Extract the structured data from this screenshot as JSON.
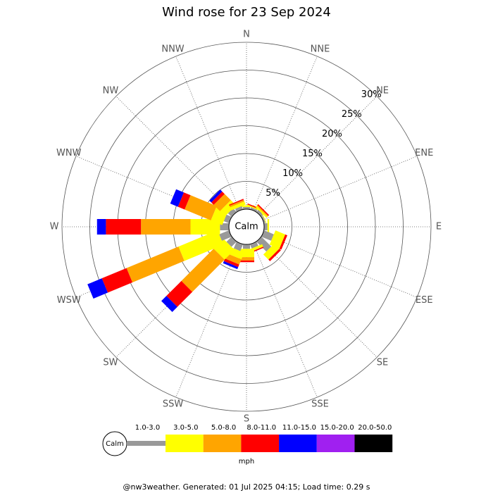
{
  "chart_data": {
    "type": "wind-rose",
    "title": "Wind rose for 23 Sep 2024",
    "categories": [
      "N",
      "NNE",
      "NE",
      "ENE",
      "E",
      "ESE",
      "SE",
      "SSE",
      "S",
      "SSW",
      "SW",
      "WSW",
      "W",
      "WNW",
      "NW",
      "NNW"
    ],
    "series": [
      {
        "name": "1.0-3.0",
        "color": "#999999",
        "values": [
          0.4,
          0.4,
          0.5,
          0.3,
          0.6,
          1.9,
          2.5,
          0.8,
          0.8,
          1.3,
          1.3,
          1.9,
          1.6,
          1.0,
          0.9,
          0.6
        ]
      },
      {
        "name": "3.0-5.0",
        "color": "#ffff00",
        "values": [
          0.3,
          0.2,
          0.3,
          0.1,
          0.3,
          1.9,
          1.3,
          0.5,
          1.5,
          1.3,
          2.5,
          7.6,
          5.3,
          2.2,
          1.3,
          0.6
        ]
      },
      {
        "name": "5.0-8.0",
        "color": "#ffa500",
        "values": [
          0,
          0,
          0.2,
          0,
          0,
          0,
          0,
          0,
          0.6,
          1.0,
          8.2,
          10.1,
          8.9,
          5.1,
          1.6,
          0.3
        ]
      },
      {
        "name": "8.0-11.0",
        "color": "#ff0000",
        "values": [
          0,
          0.2,
          0.2,
          0,
          0,
          0.4,
          0.4,
          0.2,
          0.3,
          0.5,
          3.8,
          4.8,
          6.3,
          1.3,
          0.6,
          0.2
        ]
      },
      {
        "name": "11.0-15.0",
        "color": "#0000ff",
        "values": [
          0,
          0,
          0,
          0,
          0,
          0,
          0,
          0,
          0,
          0.4,
          1.3,
          2.8,
          1.6,
          1.5,
          0.5,
          0
        ]
      },
      {
        "name": "15.0-20.0",
        "color": "#a020f0",
        "values": [
          0,
          0,
          0,
          0,
          0,
          0,
          0,
          0,
          0,
          0,
          0,
          0,
          0,
          0,
          0,
          0
        ]
      },
      {
        "name": "20.0-50.0",
        "color": "#000000",
        "values": [
          0,
          0,
          0,
          0,
          0,
          0,
          0,
          0,
          0,
          0,
          0,
          0,
          0,
          0,
          0,
          0
        ]
      }
    ],
    "rlim": [
      0,
      30
    ],
    "rticks": [
      {
        "value": 5,
        "label": "5%"
      },
      {
        "value": 10,
        "label": "10%"
      },
      {
        "value": 15,
        "label": "15%"
      },
      {
        "value": 20,
        "label": "20%"
      },
      {
        "value": 25,
        "label": "25%"
      },
      {
        "value": 30,
        "label": "30%"
      }
    ],
    "calm_label": "Calm",
    "unit": "mph",
    "footnote": "@nw3weather. Generated: 01 Jul 2025 04:15; Load time: 0.29 s"
  }
}
